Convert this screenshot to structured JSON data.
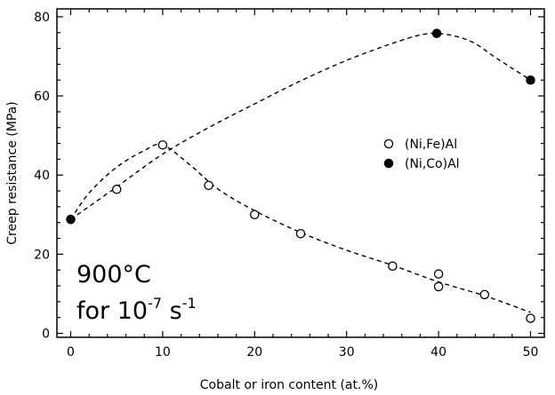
{
  "chart_data": {
    "type": "scatter",
    "title": "",
    "xlabel": "Cobalt or iron content (at.%)",
    "ylabel": "Creep resistance (MPa)",
    "xlim": [
      -1.5,
      51.5
    ],
    "ylim": [
      -1,
      82
    ],
    "x_ticks": [
      0,
      10,
      20,
      30,
      40,
      50
    ],
    "y_ticks": [
      0,
      20,
      40,
      60,
      80
    ],
    "x_tick_labels": [
      "0",
      "10",
      "20",
      "30",
      "40",
      "50"
    ],
    "y_tick_labels": [
      "0",
      "20",
      "40",
      "60",
      "80"
    ],
    "grid": false,
    "legend_position": "upper-right",
    "series": [
      {
        "name": "(Ni,Fe)Al",
        "marker": "open-circle",
        "points": [
          {
            "x": 0,
            "y": 28.8
          },
          {
            "x": 5,
            "y": 36.4
          },
          {
            "x": 10,
            "y": 47.6
          },
          {
            "x": 15,
            "y": 37.4
          },
          {
            "x": 20,
            "y": 30.0
          },
          {
            "x": 25,
            "y": 25.2
          },
          {
            "x": 35,
            "y": 17.0
          },
          {
            "x": 40,
            "y": 15.0
          },
          {
            "x": 40,
            "y": 11.8
          },
          {
            "x": 45,
            "y": 9.8
          },
          {
            "x": 50,
            "y": 3.8
          }
        ],
        "trend": [
          {
            "x": 0,
            "y": 28.8
          },
          {
            "x": 2,
            "y": 35.5
          },
          {
            "x": 5,
            "y": 42.0
          },
          {
            "x": 8,
            "y": 46.2
          },
          {
            "x": 10,
            "y": 47.6
          },
          {
            "x": 13,
            "y": 42.5
          },
          {
            "x": 16,
            "y": 36.5
          },
          {
            "x": 20,
            "y": 31.0
          },
          {
            "x": 25,
            "y": 25.5
          },
          {
            "x": 30,
            "y": 21.0
          },
          {
            "x": 35,
            "y": 17.2
          },
          {
            "x": 40,
            "y": 13.0
          },
          {
            "x": 45,
            "y": 9.5
          },
          {
            "x": 50,
            "y": 5.3
          }
        ]
      },
      {
        "name": "(Ni,Co)Al",
        "marker": "filled-circle",
        "points": [
          {
            "x": 0,
            "y": 28.8
          },
          {
            "x": 39.8,
            "y": 75.8
          },
          {
            "x": 50,
            "y": 64.0
          }
        ],
        "trend": [
          {
            "x": 0,
            "y": 28.8
          },
          {
            "x": 5,
            "y": 37.0
          },
          {
            "x": 10,
            "y": 45.3
          },
          {
            "x": 15,
            "y": 52.0
          },
          {
            "x": 20,
            "y": 58.0
          },
          {
            "x": 25,
            "y": 63.8
          },
          {
            "x": 30,
            "y": 69.0
          },
          {
            "x": 35,
            "y": 73.3
          },
          {
            "x": 38,
            "y": 75.4
          },
          {
            "x": 39.8,
            "y": 75.8
          },
          {
            "x": 42,
            "y": 75.0
          },
          {
            "x": 44,
            "y": 73.2
          },
          {
            "x": 46,
            "y": 70.0
          },
          {
            "x": 48,
            "y": 67.0
          },
          {
            "x": 50,
            "y": 64.0
          }
        ]
      }
    ],
    "annotation": {
      "line1": "900°C",
      "line2_prefix": "for 10",
      "line2_exp": "-7",
      "line2_unit": " s",
      "line2_unit_exp": "-1"
    }
  }
}
